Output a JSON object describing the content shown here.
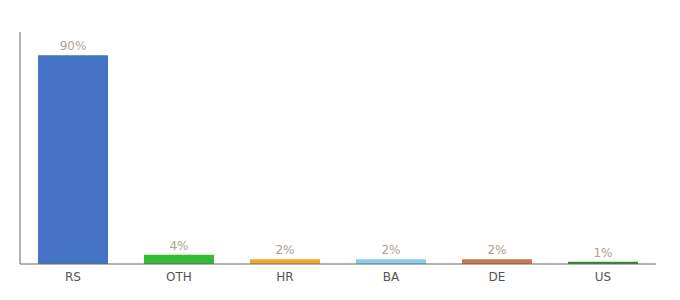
{
  "chart_data": {
    "type": "bar",
    "categories": [
      "RS",
      "OTH",
      "HR",
      "BA",
      "DE",
      "US"
    ],
    "values": [
      90,
      4,
      2,
      2,
      2,
      1
    ],
    "value_labels": [
      "90%",
      "4%",
      "2%",
      "2%",
      "2%",
      "1%"
    ],
    "data_labels": true,
    "colors": [
      "#4472C4",
      "#33BB33",
      "#F5A623",
      "#87CEEB",
      "#C47A4A",
      "#2D8A2D"
    ],
    "ylim": [
      0,
      100
    ],
    "grid": false,
    "tick_labels": "x"
  }
}
